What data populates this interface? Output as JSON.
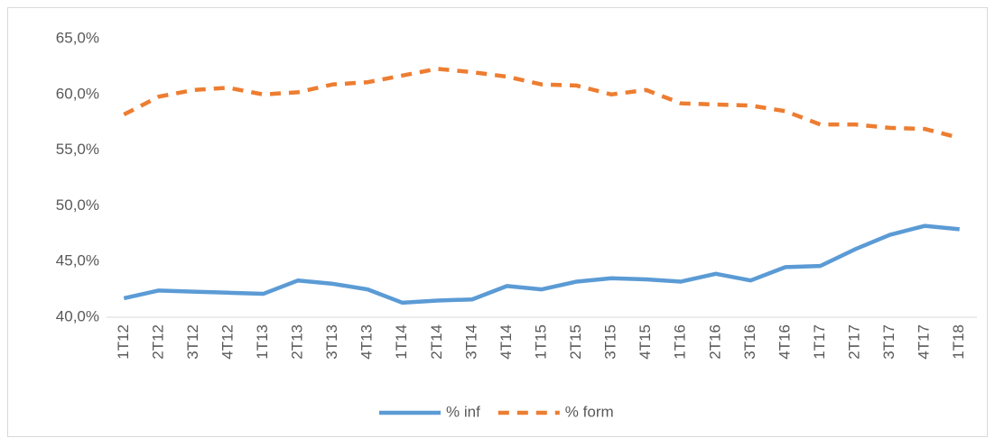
{
  "chart_data": {
    "type": "line",
    "categories": [
      "1T12",
      "2T12",
      "3T12",
      "4T12",
      "1T13",
      "2T13",
      "3T13",
      "4T13",
      "1T14",
      "2T14",
      "3T14",
      "4T14",
      "1T15",
      "2T15",
      "3T15",
      "4T15",
      "1T16",
      "2T16",
      "3T16",
      "4T16",
      "1T17",
      "2T17",
      "3T17",
      "4T17",
      "1T18"
    ],
    "series": [
      {
        "name": "% inf",
        "color": "#5b9bd5",
        "dashed": false,
        "values": [
          41.7,
          42.4,
          42.3,
          42.2,
          42.1,
          43.3,
          43.0,
          42.5,
          41.3,
          41.5,
          41.6,
          42.8,
          42.5,
          43.2,
          43.5,
          43.4,
          43.2,
          43.9,
          43.3,
          44.5,
          44.6,
          46.1,
          47.4,
          48.2,
          47.9
        ]
      },
      {
        "name": "% form",
        "color": "#ed7d31",
        "dashed": true,
        "values": [
          58.2,
          59.8,
          60.4,
          60.6,
          60.0,
          60.2,
          60.9,
          61.1,
          61.7,
          62.3,
          62.0,
          61.6,
          60.9,
          60.8,
          60.0,
          60.4,
          59.2,
          59.1,
          59.0,
          58.5,
          57.3,
          57.3,
          57.0,
          56.9,
          56.1
        ]
      }
    ],
    "ylim": [
      40,
      65
    ],
    "yticks": [
      {
        "value": 40,
        "label": "40,0%"
      },
      {
        "value": 45,
        "label": "45,0%"
      },
      {
        "value": 50,
        "label": "50,0%"
      },
      {
        "value": 55,
        "label": "55,0%"
      },
      {
        "value": 60,
        "label": "60,0%"
      },
      {
        "value": 65,
        "label": "65,0%"
      }
    ],
    "grid": false,
    "legend": "bottom"
  }
}
